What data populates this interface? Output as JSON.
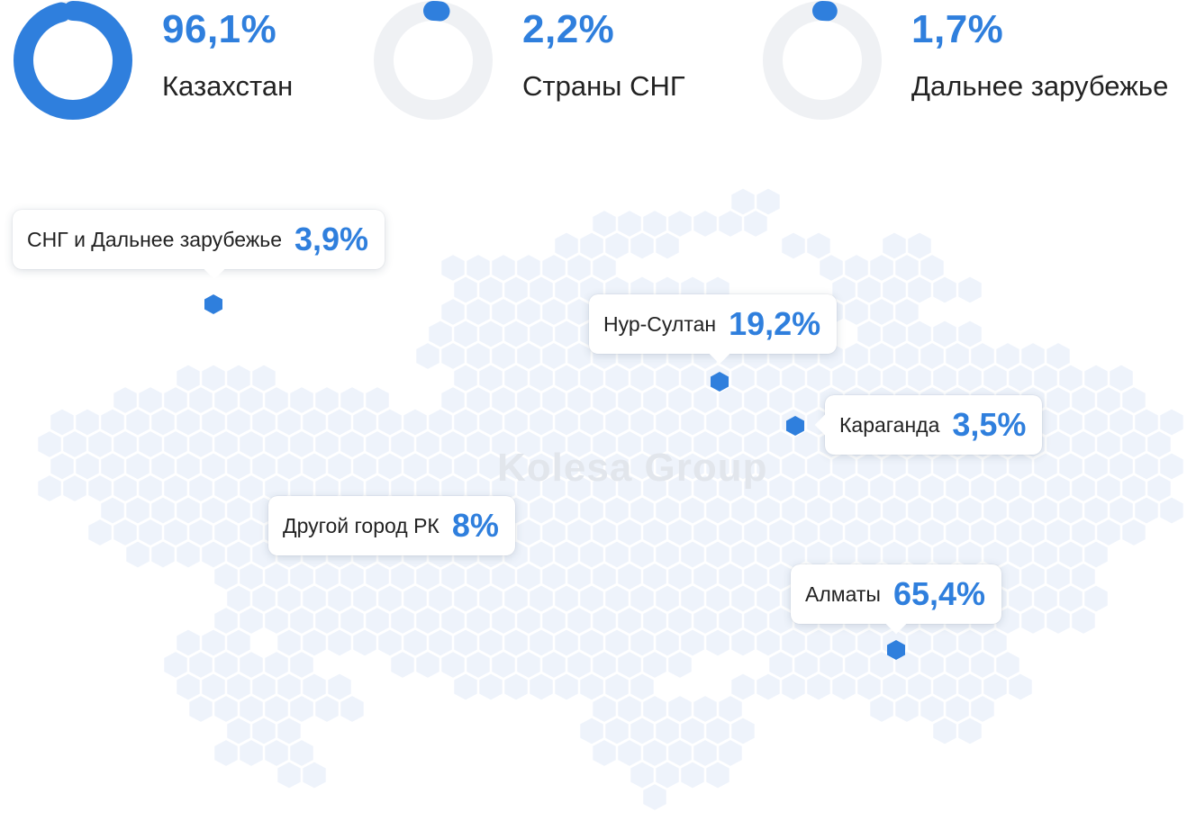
{
  "colors": {
    "accent": "#2f7fdd",
    "ring_track": "#eff1f4",
    "hex_fill": "#eef3fb"
  },
  "stats": [
    {
      "value": "96,1%",
      "label": "Казахстан",
      "share": 0.961
    },
    {
      "value": "2,2%",
      "label": "Страны СНГ",
      "share": 0.022
    },
    {
      "value": "1,7%",
      "label": "Дальнее зарубежье",
      "share": 0.017
    }
  ],
  "watermark": "Kolesa Group",
  "callouts": {
    "abroad": {
      "name": "СНГ и Дальнее зарубежье",
      "value": "3,9%"
    },
    "nur_sultan": {
      "name": "Нур-Султан",
      "value": "19,2%"
    },
    "karaganda": {
      "name": "Караганда",
      "value": "3,5%"
    },
    "other_city": {
      "name": "Другой город РК",
      "value": "8%"
    },
    "almaty": {
      "name": "Алматы",
      "value": "65,4%"
    }
  }
}
